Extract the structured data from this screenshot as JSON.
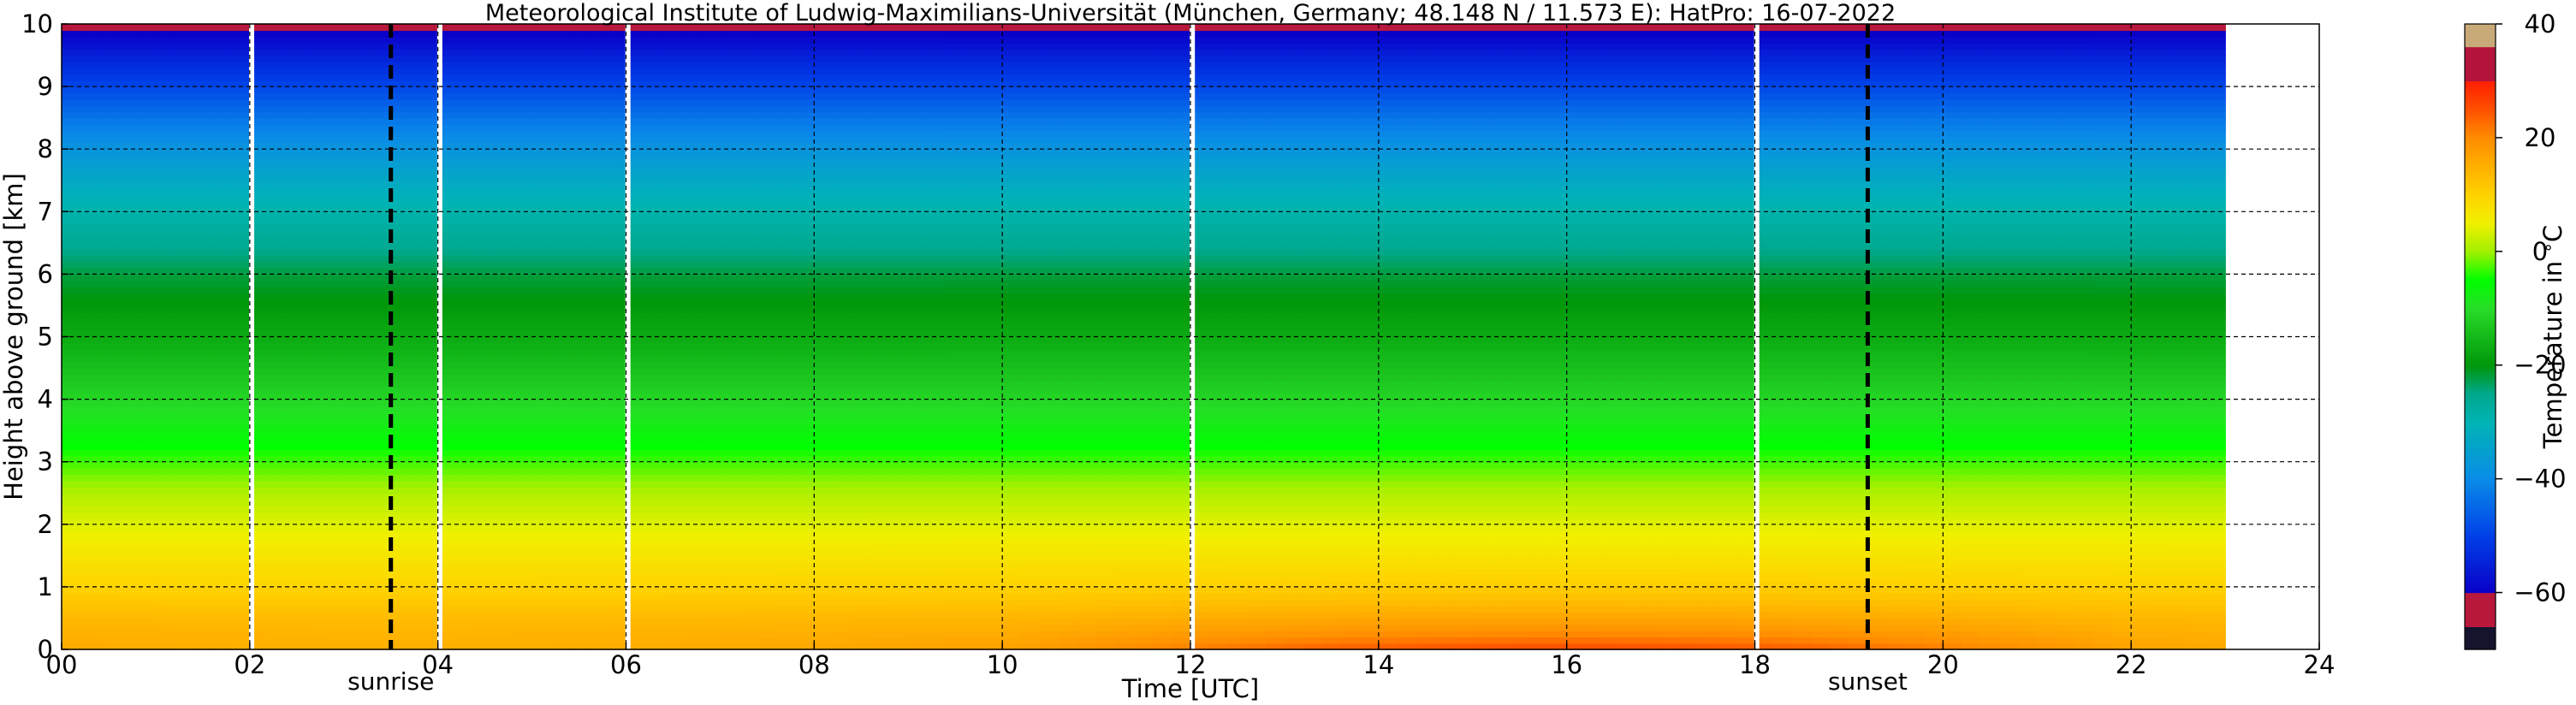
{
  "chart_data": {
    "type": "heatmap",
    "title": "Meteorological Institute of Ludwig-Maximilians-Universität (München, Germany; 48.148 N / 11.573 E):    HatPro: 16-07-2022",
    "xlabel": "Time [UTC]",
    "ylabel": "Height above ground [km]",
    "xlim": [
      0,
      24
    ],
    "ylim": [
      0,
      10
    ],
    "x_ticks": [
      "00",
      "02",
      "04",
      "06",
      "08",
      "10",
      "12",
      "14",
      "16",
      "18",
      "20",
      "22",
      "24"
    ],
    "y_ticks": [
      "0",
      "1",
      "2",
      "3",
      "4",
      "5",
      "6",
      "7",
      "8",
      "9",
      "10"
    ],
    "grid": true,
    "data_time_range_hours": [
      0,
      23
    ],
    "data_gaps_hours": [
      2.02,
      4.02,
      6.02,
      12.02,
      18.02
    ],
    "annotations": [
      {
        "label": "sunrise",
        "x": 3.5
      },
      {
        "label": "sunset",
        "x": 19.2
      }
    ],
    "temperature_profile": {
      "heights_km": [
        0,
        0.5,
        1,
        1.5,
        2,
        2.5,
        3,
        3.5,
        4,
        5,
        6,
        6.5,
        7,
        7.5,
        8,
        8.5,
        9,
        9.5,
        10
      ],
      "values_c": [
        17,
        14,
        10,
        7,
        4,
        1,
        -3,
        -7,
        -11,
        -17,
        -22,
        -26,
        -29,
        -33,
        -38,
        -43,
        -49,
        -55,
        -62
      ]
    },
    "surface_warming": {
      "peak_hour": 16,
      "peak_value_c": 26
    },
    "colorbar": {
      "label": "Temperature in $^\\circ$C",
      "ticks": [
        "-60",
        "-40",
        "-20",
        "0",
        "20",
        "40"
      ],
      "range": [
        -70,
        40
      ],
      "stops": [
        {
          "v": -70,
          "color": "#14142e"
        },
        {
          "v": -66,
          "color": "#14142e"
        },
        {
          "v": -66,
          "color": "#b8183c"
        },
        {
          "v": -60,
          "color": "#b8183c"
        },
        {
          "v": -60,
          "color": "#0a00c8"
        },
        {
          "v": -50,
          "color": "#0040e8"
        },
        {
          "v": -40,
          "color": "#0a8ce8"
        },
        {
          "v": -30,
          "color": "#00b4b4"
        },
        {
          "v": -25,
          "color": "#00a88c"
        },
        {
          "v": -20,
          "color": "#00960a"
        },
        {
          "v": -10,
          "color": "#28dc28"
        },
        {
          "v": -5,
          "color": "#00ff00"
        },
        {
          "v": 0,
          "color": "#a0f000"
        },
        {
          "v": 5,
          "color": "#f0f000"
        },
        {
          "v": 10,
          "color": "#ffd200"
        },
        {
          "v": 20,
          "color": "#ff8c00"
        },
        {
          "v": 25,
          "color": "#ff5000"
        },
        {
          "v": 30,
          "color": "#ff1e00"
        },
        {
          "v": 30,
          "color": "#b4143c"
        },
        {
          "v": 36,
          "color": "#b4143c"
        },
        {
          "v": 36,
          "color": "#c8aa78"
        },
        {
          "v": 40,
          "color": "#c8aa78"
        }
      ]
    }
  }
}
